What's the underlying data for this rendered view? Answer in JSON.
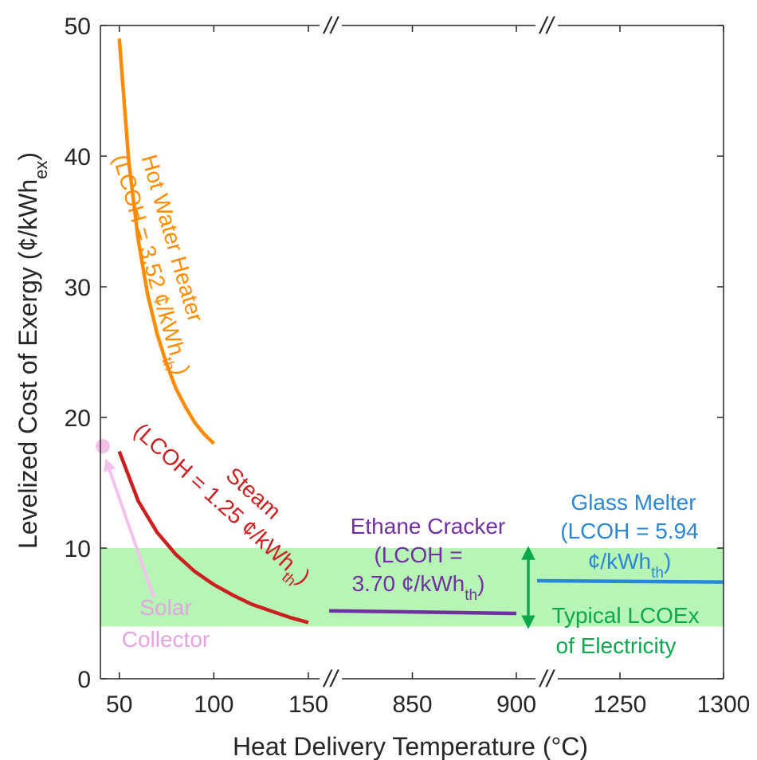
{
  "chart_data": {
    "type": "line",
    "xlabel": "Heat Delivery Temperature (°C)",
    "ylabel_parts": [
      "Levelized Cost of Exergy (¢/kWh",
      "ex",
      ")"
    ],
    "ylim": [
      0,
      50
    ],
    "y_ticks": [
      "0",
      "10",
      "20",
      "30",
      "40",
      "50"
    ],
    "x_panels": [
      {
        "range": [
          40,
          150
        ],
        "ticks": [
          "50",
          "100",
          "150"
        ]
      },
      {
        "range": [
          800,
          900
        ],
        "ticks": [
          "850",
          "900"
        ]
      },
      {
        "range": [
          1200,
          1300
        ],
        "ticks": [
          "1250",
          "1300"
        ]
      }
    ],
    "axis_break_marks": [
      "//",
      "//",
      "//",
      "//"
    ],
    "band": {
      "name": "Typical LCOEx of Electricity",
      "y_range": [
        4,
        10
      ],
      "color": "#b7f5b7"
    },
    "series": [
      {
        "name": "Hot Water Heater",
        "color": "#ff8c00",
        "x": [
          50,
          55,
          60,
          65,
          70,
          75,
          80,
          85,
          90,
          95,
          100
        ],
        "y": [
          49.0,
          39.6,
          33.6,
          29.4,
          26.4,
          24.1,
          22.2,
          20.8,
          19.6,
          18.7,
          18.0
        ]
      },
      {
        "name": "Steam",
        "color": "#cc1f1f",
        "x": [
          50,
          60,
          70,
          80,
          90,
          100,
          110,
          120,
          130,
          140,
          150
        ],
        "y": [
          17.4,
          13.6,
          11.2,
          9.5,
          8.2,
          7.2,
          6.4,
          5.7,
          5.2,
          4.7,
          4.3
        ]
      },
      {
        "name": "Ethane Cracker",
        "color": "#7030a0",
        "x": [
          810,
          900
        ],
        "y": [
          5.2,
          5.0
        ]
      },
      {
        "name": "Glass Melter",
        "color": "#2a86d6",
        "x": [
          1210,
          1300
        ],
        "y": [
          7.5,
          7.4
        ]
      }
    ],
    "points": [
      {
        "name": "Solar Collector",
        "x": 43,
        "y": 17.8,
        "color": "#f2c2ec"
      }
    ],
    "annotations": {
      "hot_water": {
        "title": "Hot Water Heater",
        "prefix": "(LCOH = 3.52 ¢/kWh",
        "sub": "th",
        "suffix": ")",
        "color": "#ff8c00"
      },
      "steam": {
        "title": "Steam",
        "prefix": "(LCOH = 1.25 ¢/kWh",
        "sub": "th",
        "suffix": ")",
        "color": "#cc1f1f"
      },
      "ethane": {
        "line1": "Ethane Cracker",
        "line2": "(LCOH =",
        "line3_prefix": "3.70 ¢/kWh",
        "sub": "th",
        "suffix": ")",
        "color": "#7030a0"
      },
      "glass": {
        "line1": "Glass Melter",
        "line2": "(LCOH = 5.94",
        "line3_prefix": "¢/kWh",
        "sub": "th",
        "suffix": ")",
        "color": "#2a86d6"
      },
      "solar": {
        "line1": "Solar",
        "line2": "Collector",
        "color": "#e6a3df"
      },
      "electricity": {
        "line1": "Typical LCOEx",
        "line2": "of Electricity",
        "color": "#0aa84a"
      }
    }
  }
}
